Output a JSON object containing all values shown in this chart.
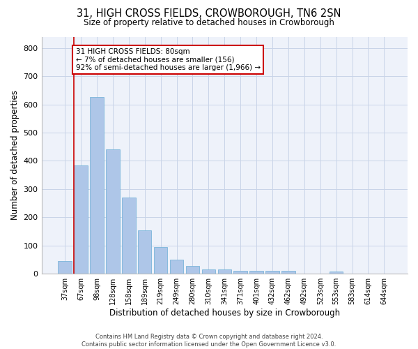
{
  "title": "31, HIGH CROSS FIELDS, CROWBOROUGH, TN6 2SN",
  "subtitle": "Size of property relative to detached houses in Crowborough",
  "xlabel": "Distribution of detached houses by size in Crowborough",
  "ylabel": "Number of detached properties",
  "bar_color": "#aec6e8",
  "bar_edge_color": "#6baed6",
  "grid_color": "#c8d4e8",
  "background_color": "#eef2fa",
  "categories": [
    "37sqm",
    "67sqm",
    "98sqm",
    "128sqm",
    "158sqm",
    "189sqm",
    "219sqm",
    "249sqm",
    "280sqm",
    "310sqm",
    "341sqm",
    "371sqm",
    "401sqm",
    "432sqm",
    "462sqm",
    "492sqm",
    "523sqm",
    "553sqm",
    "583sqm",
    "614sqm",
    "644sqm"
  ],
  "values": [
    45,
    385,
    625,
    440,
    270,
    155,
    95,
    50,
    28,
    15,
    15,
    10,
    10,
    10,
    10,
    0,
    0,
    8,
    0,
    0,
    0
  ],
  "ylim": [
    0,
    840
  ],
  "yticks": [
    0,
    100,
    200,
    300,
    400,
    500,
    600,
    700,
    800
  ],
  "marker_label_title": "31 HIGH CROSS FIELDS: 80sqm",
  "marker_label_line2": "← 7% of detached houses are smaller (156)",
  "marker_label_line3": "92% of semi-detached houses are larger (1,966) →",
  "annotation_box_color": "#ffffff",
  "annotation_box_edge": "#cc0000",
  "marker_line_color": "#cc0000",
  "footer_line1": "Contains HM Land Registry data © Crown copyright and database right 2024.",
  "footer_line2": "Contains public sector information licensed under the Open Government Licence v3.0."
}
